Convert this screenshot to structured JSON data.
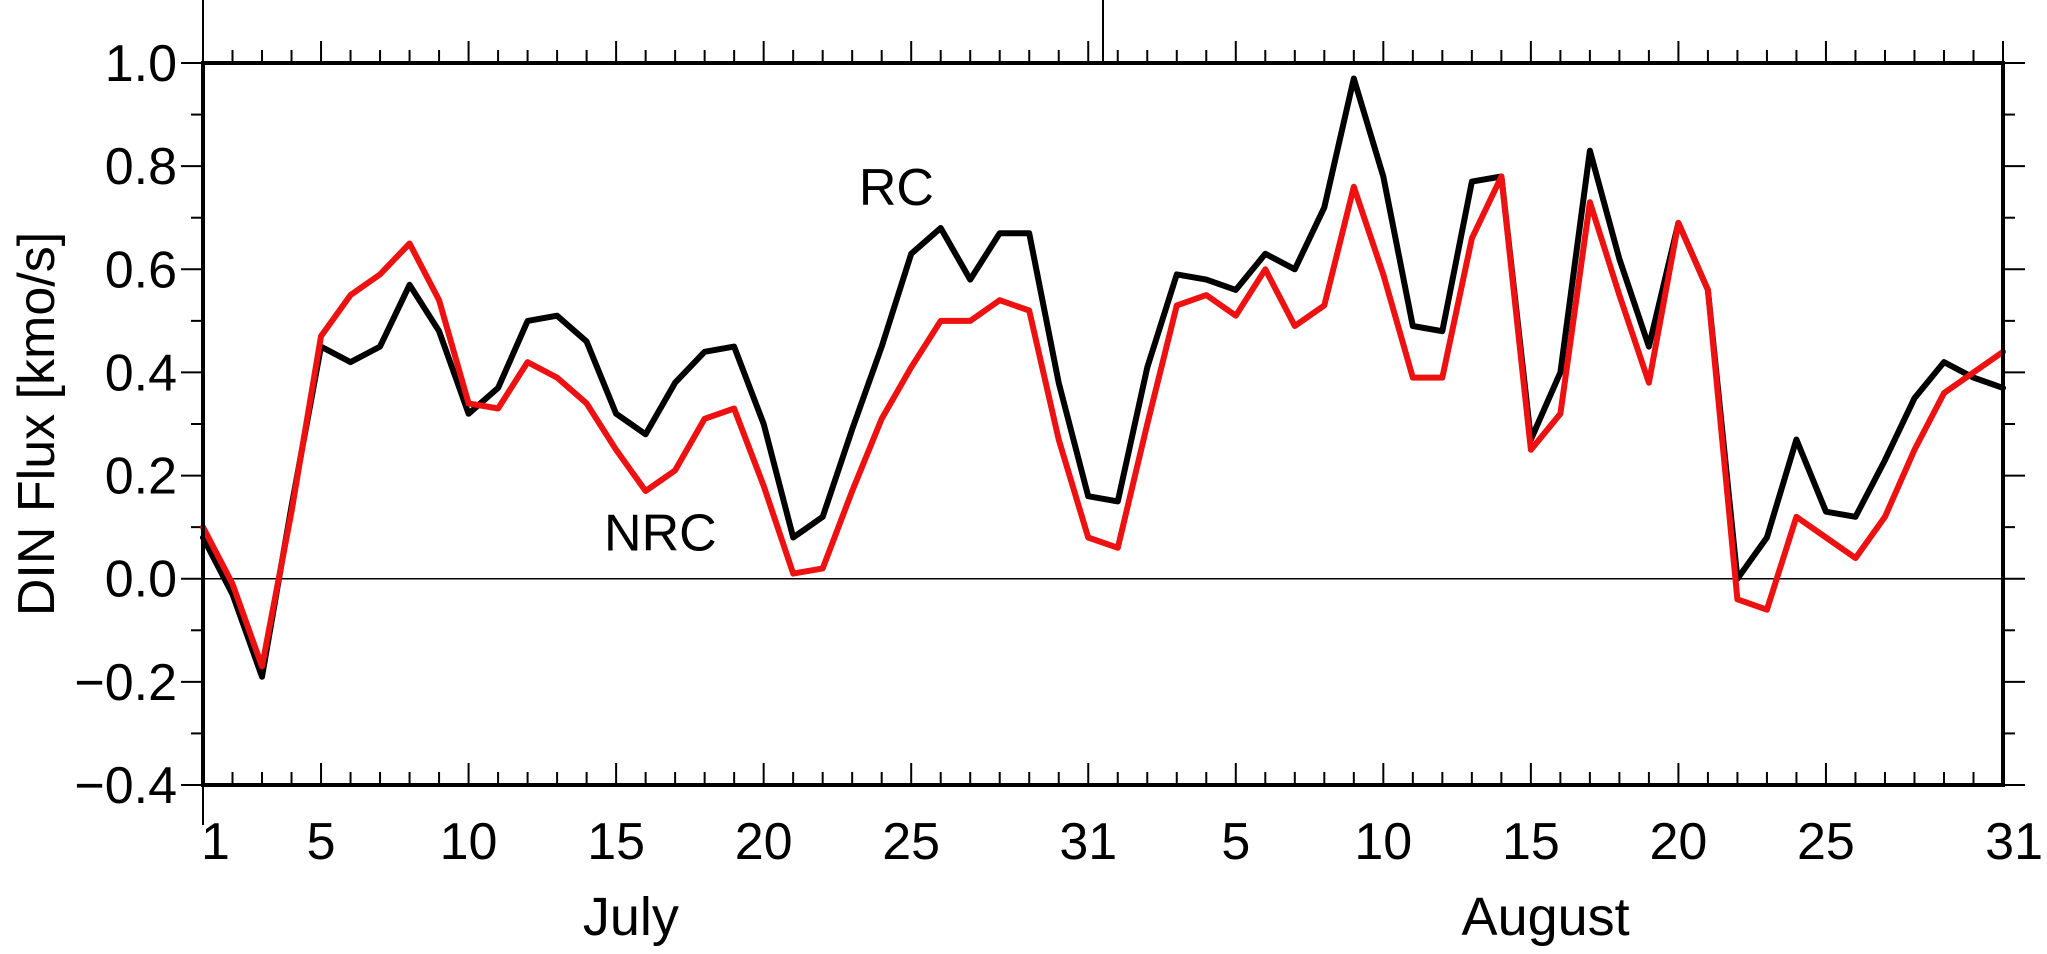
{
  "chart_data": {
    "type": "line",
    "ylabel": "DIN Flux [kmo/s]",
    "ylim": [
      -0.4,
      1.0
    ],
    "yticks": [
      -0.4,
      -0.2,
      0.0,
      0.2,
      0.4,
      0.6,
      0.8,
      1.0
    ],
    "ytick_labels": [
      "−0.4",
      "−0.2",
      "0.0",
      "0.2",
      "0.4",
      "0.6",
      "0.8",
      "1.0"
    ],
    "xlim": [
      1,
      62
    ],
    "xticks": [
      {
        "day": 1,
        "label": "1"
      },
      {
        "day": 5,
        "label": "5"
      },
      {
        "day": 10,
        "label": "10"
      },
      {
        "day": 15,
        "label": "15"
      },
      {
        "day": 20,
        "label": "20"
      },
      {
        "day": 25,
        "label": "25"
      },
      {
        "day": 31,
        "label": "31"
      },
      {
        "day": 36,
        "label": "5"
      },
      {
        "day": 41,
        "label": "10"
      },
      {
        "day": 46,
        "label": "15"
      },
      {
        "day": 51,
        "label": "20"
      },
      {
        "day": 56,
        "label": "25"
      },
      {
        "day": 62,
        "label": "31"
      }
    ],
    "months": [
      {
        "label": "July",
        "center_day": 15.5
      },
      {
        "label": "August",
        "center_day": 46.5
      }
    ],
    "month_boundary_day": 31.5,
    "zero_line": true,
    "x": [
      1,
      2,
      3,
      4,
      5,
      6,
      7,
      8,
      9,
      10,
      11,
      12,
      13,
      14,
      15,
      16,
      17,
      18,
      19,
      20,
      21,
      22,
      23,
      24,
      25,
      26,
      27,
      28,
      29,
      30,
      31,
      32,
      33,
      34,
      35,
      36,
      37,
      38,
      39,
      40,
      41,
      42,
      43,
      44,
      45,
      46,
      47,
      48,
      49,
      50,
      51,
      52,
      53,
      54,
      55,
      56,
      57,
      58,
      59,
      60,
      61,
      62
    ],
    "series": [
      {
        "name": "RC",
        "color": "#000000",
        "values": [
          0.08,
          -0.03,
          -0.19,
          0.14,
          0.45,
          0.42,
          0.45,
          0.57,
          0.48,
          0.32,
          0.37,
          0.5,
          0.51,
          0.46,
          0.32,
          0.28,
          0.38,
          0.44,
          0.45,
          0.3,
          0.08,
          0.12,
          0.29,
          0.45,
          0.63,
          0.68,
          0.58,
          0.67,
          0.67,
          0.38,
          0.16,
          0.15,
          0.41,
          0.59,
          0.58,
          0.56,
          0.63,
          0.6,
          0.72,
          0.97,
          0.78,
          0.49,
          0.48,
          0.77,
          0.78,
          0.27,
          0.4,
          0.83,
          0.62,
          0.45,
          0.69,
          0.56,
          0.0,
          0.08,
          0.27,
          0.13,
          0.12,
          0.23,
          0.35,
          0.42,
          0.39,
          0.37
        ]
      },
      {
        "name": "NRC",
        "color": "#ee1111",
        "values": [
          0.1,
          -0.01,
          -0.17,
          0.13,
          0.47,
          0.55,
          0.59,
          0.65,
          0.54,
          0.34,
          0.33,
          0.42,
          0.39,
          0.34,
          0.25,
          0.17,
          0.21,
          0.31,
          0.33,
          0.18,
          0.01,
          0.02,
          0.17,
          0.31,
          0.41,
          0.5,
          0.5,
          0.54,
          0.52,
          0.27,
          0.08,
          0.06,
          0.3,
          0.53,
          0.55,
          0.51,
          0.6,
          0.49,
          0.53,
          0.76,
          0.59,
          0.39,
          0.39,
          0.66,
          0.78,
          0.25,
          0.32,
          0.73,
          0.55,
          0.38,
          0.69,
          0.56,
          -0.04,
          -0.06,
          0.12,
          0.08,
          0.04,
          0.12,
          0.25,
          0.36,
          0.4,
          0.44
        ]
      }
    ],
    "annotations": [
      {
        "text": "RC",
        "series": "RC",
        "day": 24.5,
        "value": 0.76
      },
      {
        "text": "NRC",
        "series": "NRC",
        "day": 16.5,
        "value": 0.09
      }
    ]
  }
}
